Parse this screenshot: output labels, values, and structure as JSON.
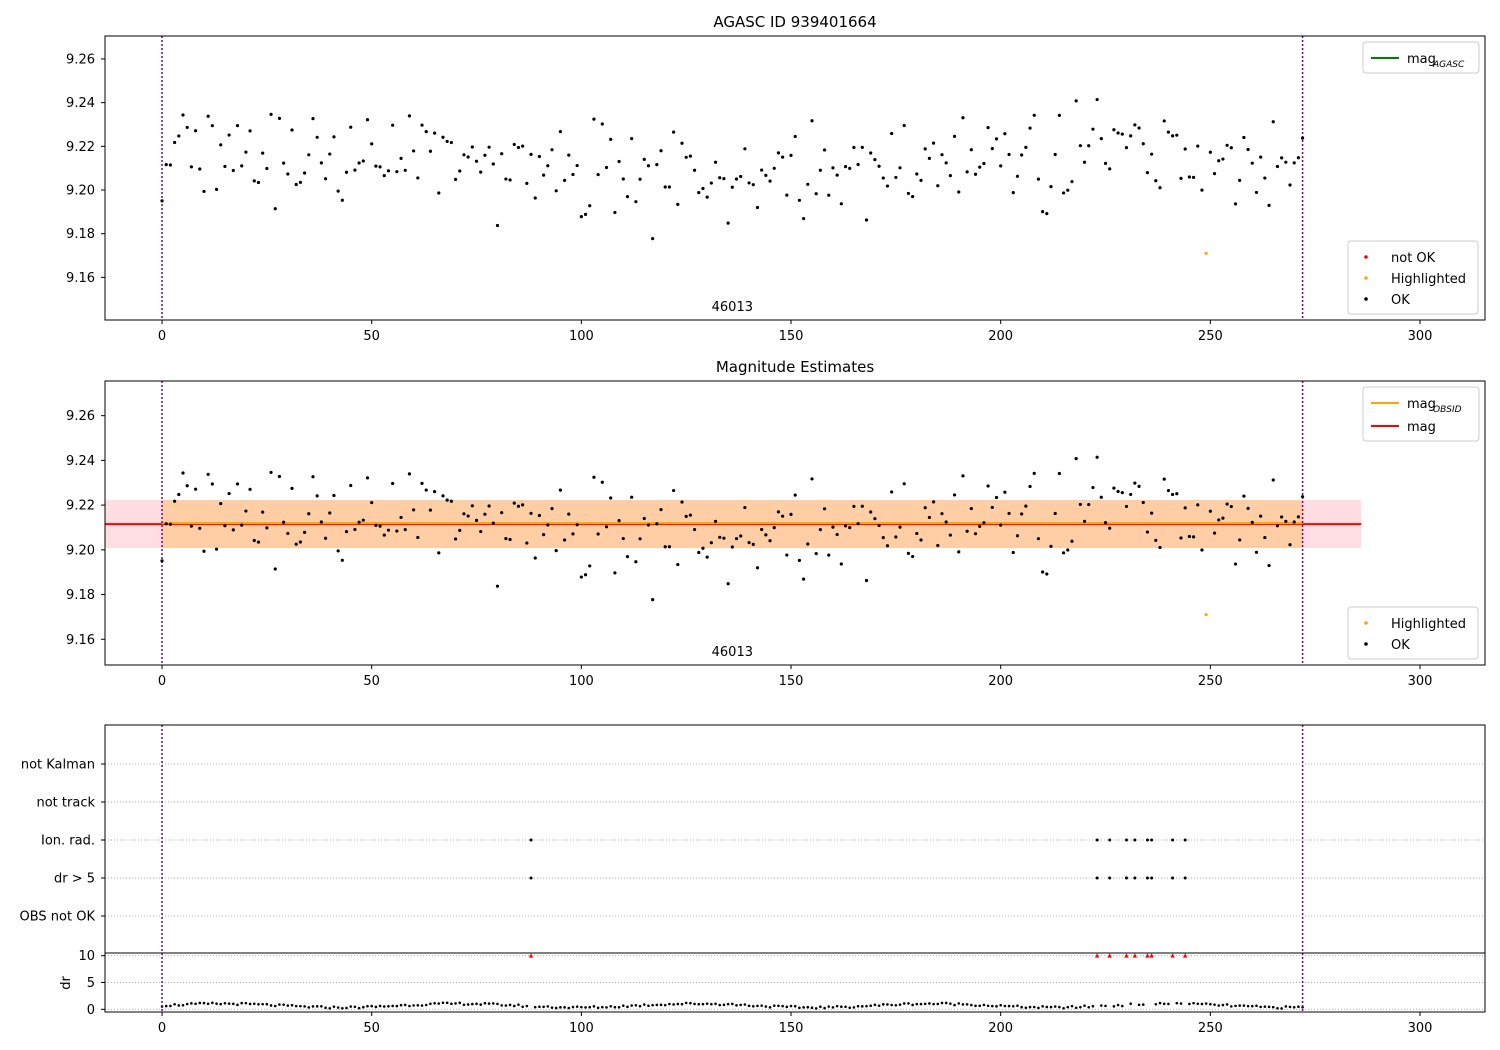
{
  "chart_data": [
    {
      "type": "scatter",
      "title": "AGASC ID 939401664",
      "xlim": [
        -13.6,
        315.5
      ],
      "ylim": [
        9.1405,
        9.2705
      ],
      "yticks": [
        9.16,
        9.18,
        9.2,
        9.22,
        9.24,
        9.26
      ],
      "xticks": [
        0,
        50,
        100,
        150,
        200,
        250,
        300
      ],
      "obsid_label": "46013",
      "obsid_label_x": 136,
      "vlines": [
        0,
        272
      ],
      "line_legend": [
        {
          "label": "mag",
          "subscript": "AGASC",
          "color": "#008000"
        }
      ],
      "marker_legend": [
        {
          "label": "not OK",
          "color": "#ff0000"
        },
        {
          "label": "Highlighted",
          "color": "#ffa500"
        },
        {
          "label": "OK",
          "color": "#000000"
        }
      ],
      "highlighted": [
        {
          "x": 249,
          "y": 9.171
        }
      ]
    },
    {
      "type": "scatter",
      "title": "Magnitude Estimates",
      "xlim": [
        -13.6,
        315.5
      ],
      "ylim": [
        9.1485,
        9.2755
      ],
      "yticks": [
        9.16,
        9.18,
        9.2,
        9.22,
        9.24,
        9.26
      ],
      "xticks": [
        0,
        50,
        100,
        150,
        200,
        250,
        300
      ],
      "obsid_label": "46013",
      "obsid_label_x": 136,
      "vlines": [
        0,
        272
      ],
      "mag": 9.2115,
      "mag_band": [
        9.2008,
        9.2223
      ],
      "mag_line_xrange": [
        -13.6,
        286
      ],
      "obsid_band_xrange": [
        0,
        272
      ],
      "line_legend": [
        {
          "label": "mag",
          "subscript": "OBSID",
          "color": "#ffa500"
        },
        {
          "label": "mag",
          "subscript": "",
          "color": "#ff0000"
        }
      ],
      "marker_legend": [
        {
          "label": "Highlighted",
          "color": "#ffa500"
        },
        {
          "label": "OK",
          "color": "#000000"
        }
      ],
      "highlighted": [
        {
          "x": 249,
          "y": 9.171
        }
      ]
    },
    {
      "type": "scatter",
      "title": "",
      "categories": [
        "not Kalman",
        "not track",
        "Ion. rad.",
        "dr > 5",
        "OBS not OK"
      ],
      "flag_x": [
        88,
        223,
        226,
        230,
        232,
        235,
        236,
        241,
        244
      ],
      "flags": {
        "Ion. rad.": true,
        "dr > 5": true
      },
      "vlines": [
        0,
        272
      ],
      "xlim": [
        -13.6,
        315.5
      ]
    },
    {
      "type": "scatter",
      "title": "",
      "ylabel": "dr",
      "ylim": [
        -0.5,
        10.5
      ],
      "yticks": [
        0,
        5,
        10
      ],
      "xticks": [
        0,
        50,
        100,
        150,
        200,
        250,
        300
      ],
      "xlim": [
        -13.6,
        315.5
      ],
      "vlines": [
        0,
        272
      ],
      "flagged_x": [
        88,
        223,
        226,
        230,
        232,
        235,
        236,
        241,
        244
      ],
      "flagged_value": 10
    }
  ]
}
